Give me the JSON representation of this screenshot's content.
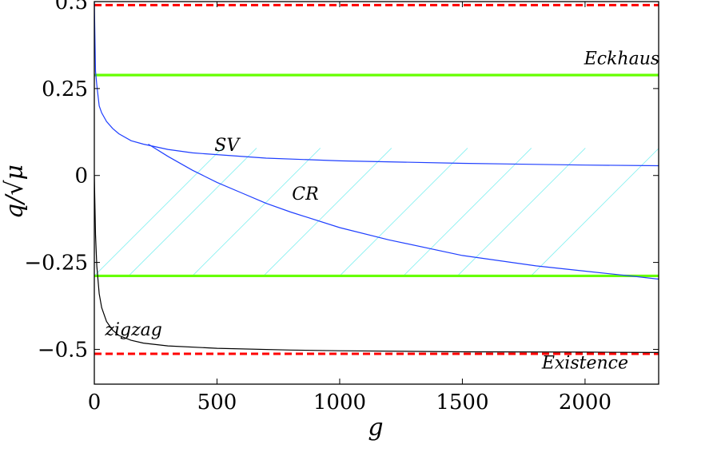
{
  "chart_data": {
    "type": "line",
    "xlabel": "g",
    "ylabel": "q/√μ",
    "xlim": [
      0,
      2300
    ],
    "ylim": [
      -0.6,
      0.5
    ],
    "xticks": [
      0,
      500,
      1000,
      1500,
      2000
    ],
    "yticks": [
      0.5,
      0.25,
      0,
      -0.25,
      -0.5
    ],
    "xtick_labels": [
      "0",
      "500",
      "1000",
      "1500",
      "2000"
    ],
    "ytick_labels": [
      "0.5",
      "0.25",
      "0",
      "−0.25",
      "−0.5"
    ],
    "grid": false,
    "colors": {
      "existence": "#ff0000",
      "eckhaus": "#66ff00",
      "sv_cr": "#1f3fff",
      "zigzag": "#000000",
      "hatch": "#7ff0f0"
    },
    "horizontal_lines": [
      {
        "label": "",
        "y": 0.4899,
        "style": "dashed",
        "color": "#ff0000"
      },
      {
        "label": "Eckhaus",
        "y": 0.2887,
        "style": "solid",
        "color": "#66ff00"
      },
      {
        "label": "",
        "y": -0.2887,
        "style": "solid",
        "color": "#66ff00"
      },
      {
        "label": "Existence",
        "y": -0.5126,
        "style": "dashed",
        "color": "#ff0000"
      }
    ],
    "series": [
      {
        "name": "SV",
        "x": [
          0,
          5,
          10,
          20,
          30,
          50,
          75,
          100,
          150,
          200,
          300,
          400,
          500,
          700,
          1000,
          1500,
          2000,
          2300
        ],
        "y": [
          0.5,
          0.3,
          0.26,
          0.2,
          0.18,
          0.155,
          0.135,
          0.12,
          0.1,
          0.09,
          0.075,
          0.065,
          0.06,
          0.05,
          0.042,
          0.035,
          0.03,
          0.028
        ]
      },
      {
        "name": "CR",
        "x": [
          220,
          300,
          400,
          500,
          600,
          700,
          800,
          1000,
          1200,
          1500,
          1800,
          2000,
          2200,
          2300
        ],
        "y": [
          0.09,
          0.055,
          0.015,
          -0.02,
          -0.05,
          -0.08,
          -0.105,
          -0.15,
          -0.185,
          -0.23,
          -0.26,
          -0.275,
          -0.29,
          -0.298
        ]
      },
      {
        "name": "zigzag",
        "x": [
          0,
          5,
          10,
          20,
          30,
          50,
          75,
          100,
          150,
          200,
          300,
          500,
          800,
          1000,
          1500,
          2000,
          2300
        ],
        "y": [
          0.0,
          -0.17,
          -0.26,
          -0.34,
          -0.38,
          -0.42,
          -0.445,
          -0.46,
          -0.474,
          -0.482,
          -0.49,
          -0.497,
          -0.502,
          -0.504,
          -0.507,
          -0.508,
          -0.509
        ]
      }
    ],
    "annotations": [
      {
        "text": "SV",
        "x": 540,
        "y": 0.07
      },
      {
        "text": "CR",
        "x": 860,
        "y": -0.07
      },
      {
        "text": "zigzag",
        "x": 160,
        "y": -0.46
      },
      {
        "text": "Eckhaus",
        "x": 2150,
        "y": 0.32
      },
      {
        "text": "Existence",
        "x": 2000,
        "y": -0.555
      }
    ]
  }
}
